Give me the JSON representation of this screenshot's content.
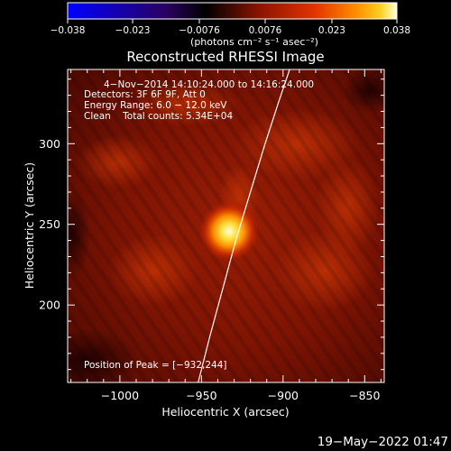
{
  "chart_data": {
    "type": "heatmap",
    "title": "Reconstructed RHESSI Image",
    "xlabel": "Heliocentric X (arcsec)",
    "ylabel": "Heliocentric Y (arcsec)",
    "xlim": [
      -1032,
      -838
    ],
    "ylim": [
      152,
      346
    ],
    "x_ticks": [
      -1000,
      -950,
      -900,
      -850
    ],
    "x_tick_labels": [
      "−1000",
      "−950",
      "−900",
      "−850"
    ],
    "y_ticks": [
      200,
      250,
      300
    ],
    "y_tick_labels": [
      "200",
      "250",
      "300"
    ],
    "colorbar": {
      "range": [
        -0.038,
        0.038
      ],
      "ticks": [
        -0.038,
        -0.023,
        -0.0076,
        0.0076,
        0.023,
        0.038
      ],
      "tick_labels": [
        "−0.038",
        "−0.023",
        "−0.0076",
        "0.0076",
        "0.023",
        "0.038"
      ],
      "unit": "(photons cm⁻² s⁻¹ asec⁻²)",
      "colormap": [
        "#0000ff",
        "#3b006a",
        "#000000",
        "#8a1400",
        "#e23300",
        "#ff8800",
        "#ffcc10",
        "#ffffd6"
      ]
    },
    "annotations": [
      "4−Nov−2014 14:10:24.000 to 14:16:24.000",
      "Detectors: 3F 6F 9F, Att 0",
      "Energy Range: 6.0 − 12.0 keV",
      "Clean    Total counts: 5.34E+04"
    ],
    "peak_label": "Position of Peak = [−932,244]",
    "peak": {
      "x": -932,
      "y": 244
    },
    "limb_curve": [
      [
        -952,
        152
      ],
      [
        -945,
        180
      ],
      [
        -937,
        210
      ],
      [
        -929,
        240
      ],
      [
        -920,
        270
      ],
      [
        -911,
        300
      ],
      [
        -903,
        325
      ],
      [
        -896,
        346
      ]
    ],
    "timestamp": "19−May−2022 01:47"
  }
}
